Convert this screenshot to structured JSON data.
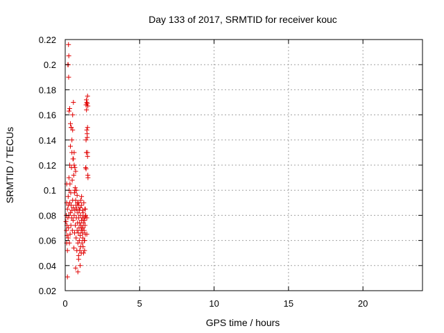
{
  "chart_data": {
    "type": "scatter",
    "title": "Day 133 of 2017, SRMTID for receiver kouc",
    "xlabel": "GPS time / hours",
    "ylabel": "SRMTID / TECUs",
    "xlim": [
      0,
      24
    ],
    "ylim": [
      0.02,
      0.22
    ],
    "xticks": [
      0,
      5,
      10,
      15,
      20
    ],
    "xtick_labels": [
      "0",
      "5",
      "10",
      "15",
      "20"
    ],
    "yticks": [
      0.02,
      0.04,
      0.06,
      0.08,
      0.1,
      0.12,
      0.14,
      0.16,
      0.18,
      0.2,
      0.22
    ],
    "ytick_labels": [
      "0.02",
      "0.04",
      "0.06",
      "0.08",
      "0.1",
      "0.12",
      "0.14",
      "0.16",
      "0.18",
      "0.2",
      "0.22"
    ],
    "grid": true,
    "marker": "plus",
    "color": "#e00000",
    "series": [
      {
        "x": [
          0.05,
          0.07,
          0.08,
          0.1,
          0.1,
          0.12,
          0.12,
          0.15,
          0.15,
          0.18,
          0.2,
          0.2,
          0.22,
          0.22,
          0.25,
          0.25,
          0.27,
          0.28,
          0.3,
          0.3,
          0.32,
          0.33,
          0.35,
          0.35,
          0.37,
          0.38,
          0.4,
          0.4,
          0.42,
          0.43,
          0.45,
          0.45,
          0.47,
          0.48,
          0.5,
          0.5,
          0.52,
          0.53,
          0.55,
          0.55,
          0.57,
          0.58,
          0.6,
          0.6,
          0.62,
          0.63,
          0.65,
          0.65,
          0.67,
          0.68,
          0.7,
          0.7,
          0.72,
          0.73,
          0.75,
          0.75,
          0.77,
          0.78,
          0.8,
          0.8,
          0.82,
          0.83,
          0.85,
          0.85,
          0.87,
          0.88,
          0.9,
          0.9,
          0.92,
          0.93,
          0.95,
          0.95,
          0.97,
          0.98,
          1.0,
          1.0,
          1.02,
          1.03,
          1.05,
          1.05,
          1.07,
          1.08,
          1.1,
          1.1,
          1.12,
          1.13,
          1.15,
          1.15,
          1.17,
          1.18,
          1.2,
          1.2,
          1.22,
          1.23,
          1.25,
          1.25,
          1.27,
          1.28,
          1.3,
          1.3,
          1.32,
          1.33,
          1.35,
          1.35,
          1.37,
          1.38,
          1.4,
          1.4,
          1.42,
          1.43,
          1.45,
          1.45,
          1.47,
          1.48,
          1.5,
          1.5,
          1.52,
          1.53,
          0.18,
          0.22,
          0.24,
          0.2,
          0.23,
          0.26,
          0.1,
          0.15,
          0.3,
          0.35,
          0.4,
          0.45,
          0.5,
          0.55,
          0.6,
          0.65,
          0.7,
          0.85,
          0.9,
          1.0,
          1.1,
          1.2,
          1.3,
          1.45,
          1.5,
          1.48,
          1.52,
          1.5,
          1.45,
          1.4,
          1.35,
          1.42
        ],
        "y": [
          0.075,
          0.08,
          0.068,
          0.09,
          0.058,
          0.072,
          0.064,
          0.085,
          0.052,
          0.078,
          0.095,
          0.062,
          0.088,
          0.07,
          0.11,
          0.08,
          0.1,
          0.058,
          0.12,
          0.09,
          0.105,
          0.065,
          0.135,
          0.082,
          0.098,
          0.072,
          0.15,
          0.088,
          0.118,
          0.078,
          0.13,
          0.084,
          0.108,
          0.068,
          0.148,
          0.092,
          0.125,
          0.076,
          0.17,
          0.086,
          0.112,
          0.054,
          0.12,
          0.08,
          0.098,
          0.066,
          0.118,
          0.084,
          0.102,
          0.072,
          0.092,
          0.038,
          0.088,
          0.062,
          0.1,
          0.078,
          0.085,
          0.052,
          0.096,
          0.068,
          0.09,
          0.074,
          0.082,
          0.058,
          0.088,
          0.066,
          0.078,
          0.048,
          0.09,
          0.07,
          0.084,
          0.06,
          0.074,
          0.052,
          0.086,
          0.064,
          0.08,
          0.055,
          0.092,
          0.072,
          0.068,
          0.05,
          0.088,
          0.076,
          0.07,
          0.058,
          0.078,
          0.066,
          0.084,
          0.062,
          0.082,
          0.07,
          0.074,
          0.05,
          0.09,
          0.078,
          0.068,
          0.06,
          0.076,
          0.052,
          0.085,
          0.072,
          0.079,
          0.065,
          0.118,
          0.08,
          0.168,
          0.14,
          0.172,
          0.164,
          0.17,
          0.148,
          0.145,
          0.142,
          0.13,
          0.127,
          0.112,
          0.11,
          0.2,
          0.216,
          0.207,
          0.2,
          0.19,
          0.163,
          0.105,
          0.031,
          0.165,
          0.153,
          0.15,
          0.14,
          0.16,
          0.125,
          0.13,
          0.1,
          0.115,
          0.035,
          0.045,
          0.04,
          0.095,
          0.055,
          0.06,
          0.065,
          0.175,
          0.169,
          0.167,
          0.15,
          0.078,
          0.117,
          0.085,
          0.13
        ]
      }
    ]
  }
}
